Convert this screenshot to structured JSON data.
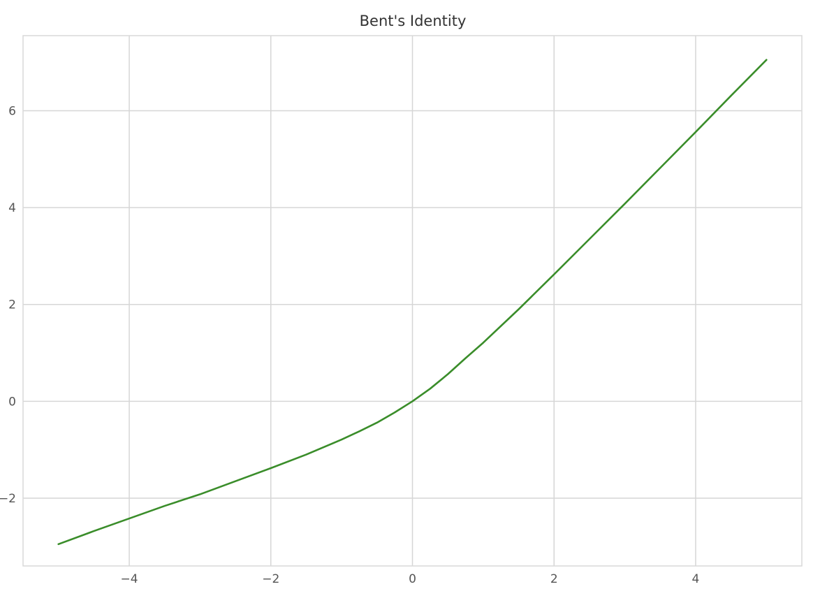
{
  "chart_data": {
    "type": "line",
    "title": "Bent's Identity",
    "xlabel": "",
    "ylabel": "",
    "xlim": [
      -5.5,
      5.5
    ],
    "ylim": [
      -3.4,
      7.55
    ],
    "grid": true,
    "xticks": [
      {
        "value": -4,
        "label": "−4"
      },
      {
        "value": -2,
        "label": "−2"
      },
      {
        "value": 0,
        "label": "0"
      },
      {
        "value": 2,
        "label": "2"
      },
      {
        "value": 4,
        "label": "4"
      }
    ],
    "yticks": [
      {
        "value": -2,
        "label": "−2"
      },
      {
        "value": 0,
        "label": "0"
      },
      {
        "value": 2,
        "label": "2"
      },
      {
        "value": 4,
        "label": "4"
      },
      {
        "value": 6,
        "label": "6"
      }
    ],
    "series": [
      {
        "color": "#3a8d2a",
        "x": [
          -5.0,
          -4.5,
          -4.0,
          -3.5,
          -3.0,
          -2.5,
          -2.0,
          -1.5,
          -1.0,
          -0.75,
          -0.5,
          -0.25,
          0.0,
          0.25,
          0.5,
          0.75,
          1.0,
          1.5,
          2.0,
          2.5,
          3.0,
          3.5,
          4.0,
          4.5,
          5.0
        ],
        "y": [
          -2.95,
          -2.68,
          -2.42,
          -2.16,
          -1.92,
          -1.65,
          -1.38,
          -1.1,
          -0.79,
          -0.62,
          -0.44,
          -0.23,
          0.0,
          0.26,
          0.56,
          0.89,
          1.21,
          1.9,
          2.62,
          3.35,
          4.08,
          4.82,
          5.56,
          6.31,
          7.05
        ]
      }
    ]
  }
}
